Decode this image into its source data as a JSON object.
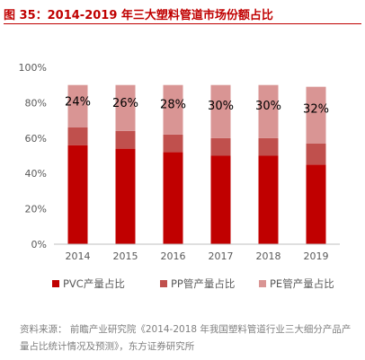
{
  "title": "图 35：2014-2019 年三大塑料管道市场份额占比",
  "source": "资料来源：  前瞻产业研究院《2014-2018 年我国塑料管道行业三大细分产品产量占比统计情况及预测》，东方证券研究所",
  "chart_data": {
    "type": "bar",
    "stacked": true,
    "categories": [
      "2014",
      "2015",
      "2016",
      "2017",
      "2018",
      "2019"
    ],
    "series": [
      {
        "name": "PVC产量占比",
        "color": "#c00000",
        "values": [
          56,
          54,
          52,
          50,
          50,
          45
        ]
      },
      {
        "name": "PP管产量占比",
        "color": "#c0504d",
        "values": [
          10,
          10,
          10,
          10,
          10,
          12
        ]
      },
      {
        "name": "PE管产量占比",
        "color": "#d99594",
        "values": [
          24,
          26,
          28,
          30,
          30,
          32
        ]
      }
    ],
    "data_labels": [
      "24%",
      "26%",
      "28%",
      "30%",
      "30%",
      "32%"
    ],
    "yticks": [
      "0%",
      "20%",
      "40%",
      "60%",
      "80%",
      "100%"
    ],
    "ylim": [
      0,
      100
    ],
    "legend_position": "bottom",
    "grid": false
  }
}
